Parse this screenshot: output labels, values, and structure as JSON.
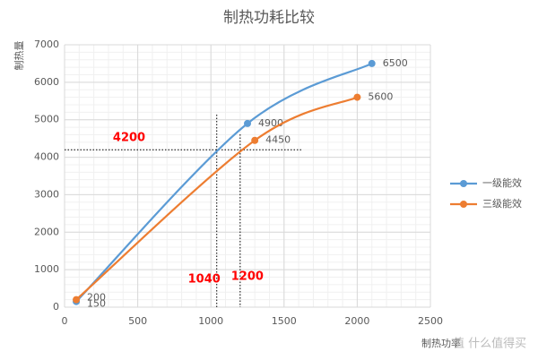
{
  "chart_data": {
    "type": "line",
    "title": "制热功耗比较",
    "y_label": "制热量",
    "x_label": "制热功率",
    "watermark": "值 什么值得买",
    "series": [
      {
        "name": "一级能效",
        "color": "#5b9bd5",
        "x": [
          80,
          1250,
          2100
        ],
        "values": [
          150,
          4900,
          6500
        ]
      },
      {
        "name": "三级能效",
        "color": "#ed7d31",
        "x": [
          80,
          1300,
          2000
        ],
        "values": [
          200,
          4450,
          5600
        ]
      }
    ],
    "xlim": [
      0,
      2500
    ],
    "xticks": [
      0,
      500,
      1000,
      1500,
      2000,
      2500
    ],
    "ylim": [
      0,
      7000
    ],
    "yticks": [
      0,
      1000,
      2000,
      3000,
      4000,
      5000,
      6000,
      7000
    ],
    "grid": true,
    "smooth": true,
    "legend": "right",
    "reference_lines": {
      "y": [
        4200
      ],
      "x": [
        1040,
        1200
      ]
    }
  }
}
